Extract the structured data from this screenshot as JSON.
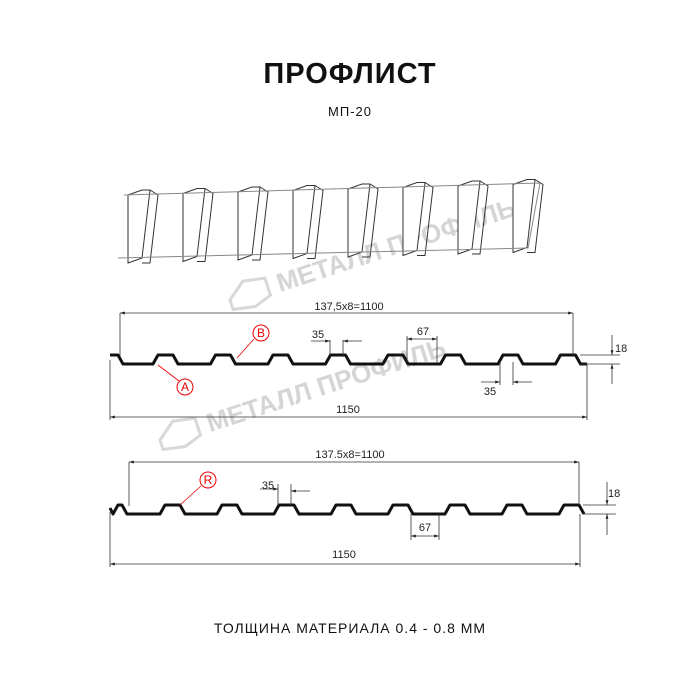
{
  "header": {
    "title": "ПРОФЛИСТ",
    "subtitle": "МП-20"
  },
  "watermark": "МЕТАЛЛ ПРОФИЛЬ",
  "profile_top": {
    "pitch_label": "137,5x8=1100",
    "width_label": "1150",
    "rib_top": "35",
    "rib_bottom": "35",
    "valley": "67",
    "height": "18",
    "markers": [
      "A",
      "B"
    ]
  },
  "profile_bottom": {
    "pitch_label": "137.5x8=1100",
    "width_label": "1150",
    "rib_top": "35",
    "valley": "67",
    "height": "18",
    "markers": [
      "R"
    ]
  },
  "footer": {
    "thickness": "ТОЛЩИНА МАТЕРИАЛА 0.4 - 0.8 ММ"
  },
  "colors": {
    "marker": "#e00000",
    "line": "#111111",
    "watermark": "#d5d5d5"
  }
}
